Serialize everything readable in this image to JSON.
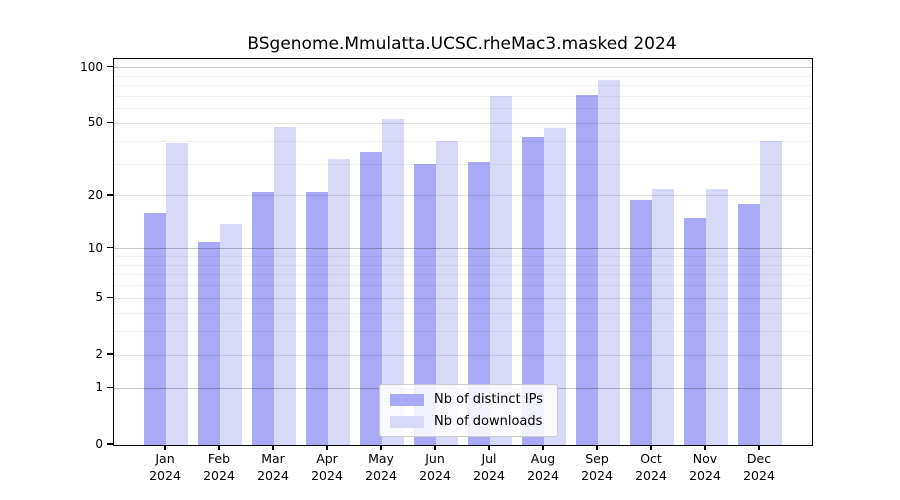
{
  "chart_data": {
    "type": "bar",
    "title": "BSgenome.Mmulatta.UCSC.rheMac3.masked 2024",
    "yscale": "log1p",
    "ylim": [
      0,
      111
    ],
    "y_ticks": [
      0,
      1,
      2,
      5,
      10,
      20,
      50,
      100
    ],
    "grid": "horizontal",
    "grid_values_major": [
      1,
      10,
      100
    ],
    "grid_values_sub": [
      2,
      5,
      20,
      50
    ],
    "grid_values_minor": [
      3,
      4,
      6,
      7,
      8,
      9,
      30,
      40,
      60,
      70,
      80,
      90
    ],
    "categories": [
      "Jan 2024",
      "Feb 2024",
      "Mar 2024",
      "Apr 2024",
      "May 2024",
      "Jun 2024",
      "Jul 2024",
      "Aug 2024",
      "Sep 2024",
      "Oct 2024",
      "Nov 2024",
      "Dec 2024"
    ],
    "series": [
      {
        "name": "Nb of distinct IPs",
        "color": "#a9a9f5",
        "values": [
          16,
          11,
          21,
          21,
          35,
          30,
          31,
          42,
          71,
          19,
          15,
          18
        ]
      },
      {
        "name": "Nb of downloads",
        "color": "#d8d8f9",
        "values": [
          39,
          14,
          48,
          32,
          53,
          40,
          70,
          47,
          86,
          22,
          22,
          40
        ]
      }
    ],
    "legend_position": "lower center"
  }
}
